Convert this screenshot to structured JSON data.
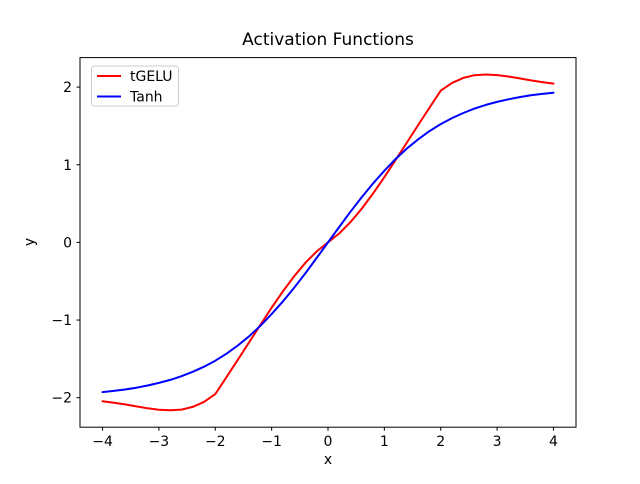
{
  "chart_data": {
    "type": "line",
    "title": "Activation Functions",
    "xlabel": "x",
    "ylabel": "y",
    "xlim": [
      -4.4,
      4.4
    ],
    "ylim": [
      -2.38,
      2.38
    ],
    "x_ticks": [
      -4,
      -3,
      -2,
      -1,
      0,
      1,
      2,
      3,
      4
    ],
    "x_tick_labels": [
      "−4",
      "−3",
      "−2",
      "−1",
      "0",
      "1",
      "2",
      "3",
      "4"
    ],
    "y_ticks": [
      -2,
      -1,
      0,
      1,
      2
    ],
    "y_tick_labels": [
      "−2",
      "−1",
      "0",
      "1",
      "2"
    ],
    "grid": false,
    "legend_position": "upper left",
    "background_color": "#ffffff",
    "axis_color": "#000000",
    "legend_border_color": "#cccccc",
    "x": [
      -4,
      -3.8,
      -3.6,
      -3.4,
      -3.2,
      -3,
      -2.8,
      -2.6,
      -2.4,
      -2.2,
      -2,
      -1.8,
      -1.6,
      -1.4,
      -1.2,
      -1,
      -0.8,
      -0.6,
      -0.4,
      -0.2,
      0,
      0.2,
      0.4,
      0.6,
      0.8,
      1,
      1.2,
      1.4,
      1.6,
      1.8,
      2,
      2.2,
      2.4,
      2.6,
      2.8,
      3,
      3.2,
      3.4,
      3.6,
      3.8,
      4
    ],
    "series": [
      {
        "name": "tGELU",
        "color": "#ff0000",
        "values": [
          -2.045,
          -2.064,
          -2.087,
          -2.112,
          -2.136,
          -2.155,
          -2.162,
          -2.153,
          -2.118,
          -2.054,
          -1.954,
          -1.735,
          -1.512,
          -1.287,
          -1.062,
          -0.841,
          -0.631,
          -0.435,
          -0.262,
          -0.116,
          0,
          0.116,
          0.262,
          0.435,
          0.631,
          0.841,
          1.062,
          1.287,
          1.512,
          1.735,
          1.954,
          2.054,
          2.118,
          2.153,
          2.162,
          2.155,
          2.136,
          2.112,
          2.087,
          2.064,
          2.045
        ]
      },
      {
        "name": "Tanh",
        "color": "#0000ff",
        "values": [
          -1.928,
          -1.913,
          -1.894,
          -1.871,
          -1.843,
          -1.81,
          -1.771,
          -1.723,
          -1.667,
          -1.601,
          -1.523,
          -1.433,
          -1.328,
          -1.209,
          -1.074,
          -0.924,
          -0.76,
          -0.583,
          -0.395,
          -0.199,
          0,
          0.199,
          0.395,
          0.583,
          0.76,
          0.924,
          1.074,
          1.209,
          1.328,
          1.433,
          1.523,
          1.601,
          1.667,
          1.723,
          1.771,
          1.81,
          1.843,
          1.871,
          1.894,
          1.913,
          1.928
        ]
      }
    ]
  }
}
